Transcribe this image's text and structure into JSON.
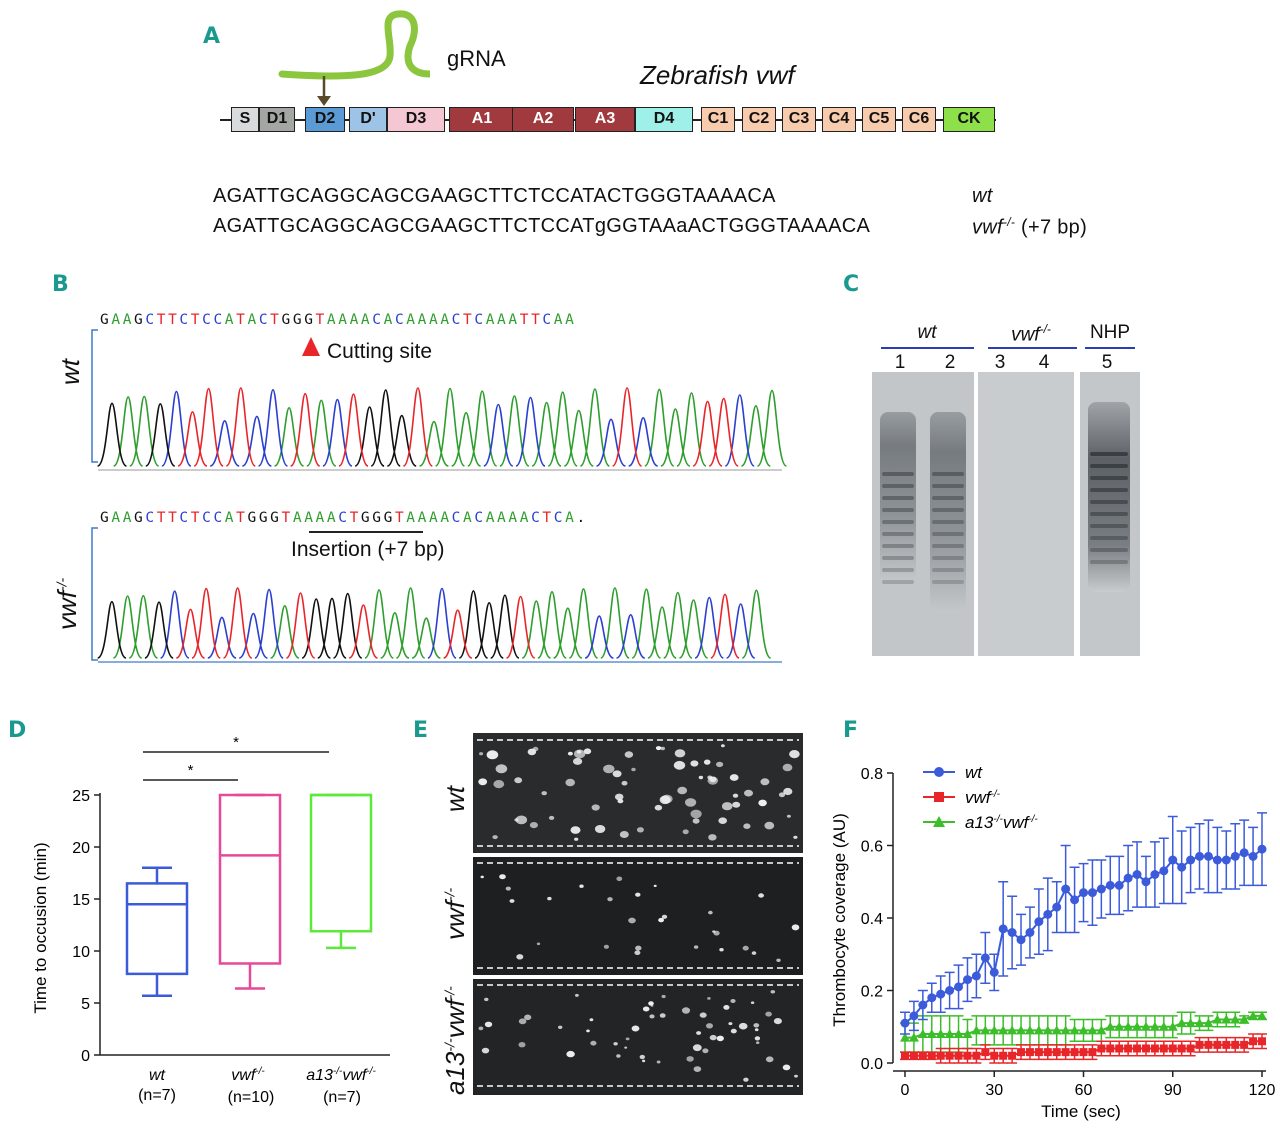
{
  "panel_letters": {
    "a": "A",
    "b": "B",
    "c": "C",
    "d": "D",
    "e": "E",
    "f": "F"
  },
  "panelA": {
    "grna_label": "gRNA",
    "gene_title": "Zebrafish vwf",
    "domains": [
      {
        "label": "S",
        "color": "#d8dadb"
      },
      {
        "label": "D1",
        "color": "#a4a6a4"
      },
      {
        "label": "D2",
        "color": "#5b9bd5"
      },
      {
        "label": "D'",
        "color": "#9dc3e6"
      },
      {
        "label": "D3",
        "color": "#f4c7d3"
      },
      {
        "label": "A1",
        "color": "#a03a3e"
      },
      {
        "label": "A2",
        "color": "#a03a3e"
      },
      {
        "label": "A3",
        "color": "#a03a3e"
      },
      {
        "label": "D4",
        "color": "#9ff0e8"
      },
      {
        "label": "C1",
        "color": "#f8cbad"
      },
      {
        "label": "C2",
        "color": "#f8cbad"
      },
      {
        "label": "C3",
        "color": "#f8cbad"
      },
      {
        "label": "C4",
        "color": "#f8cbad"
      },
      {
        "label": "C5",
        "color": "#f8cbad"
      },
      {
        "label": "C6",
        "color": "#f8cbad"
      },
      {
        "label": "CK",
        "color": "#8ee04a"
      }
    ],
    "seq_wt": "AGATTGCAGGCAGCGAAGCTTCTCCATACTGGGTAAAACA",
    "seq_mut_pre": "AGATTGCAGGCAGCGAAGCTTCTCCAT",
    "seq_mut_ins1": "g",
    "seq_mut_mid": "GGTAA",
    "seq_mut_ins2": "a",
    "seq_mut_post": "ACTGGGTAAAACA",
    "label_wt": "wt",
    "label_mut": "vwf",
    "label_mut_sup": "-/-",
    "label_mut_note": "(+7 bp)"
  },
  "panelB": {
    "wt_label": "wt",
    "mut_label": "vwf",
    "mut_sup": "-/-",
    "wt_seq": "GAAGCTTCTCCATACTGGGTAAAACACAAAACTCAAATTCAA",
    "mut_seq": "GAAGCTTCTCCATGGGTAAAACTGGGTAAAACACAAAACTCA.",
    "cutting_site": "Cutting site",
    "insertion": "Insertion (+7 bp)"
  },
  "panelC": {
    "group_wt": "wt",
    "group_mut": "vwf",
    "group_mut_sup": "-/-",
    "group_nhp": "NHP",
    "lanes": [
      "1",
      "2",
      "3",
      "4",
      "5"
    ]
  },
  "panelD": {
    "chart_data": {
      "type": "box",
      "ylabel": "Time to occusion (min)",
      "ylim": [
        0,
        25
      ],
      "yticks": [
        0,
        5,
        10,
        15,
        20,
        25
      ],
      "groups": [
        {
          "name": "wt",
          "n": "(n=7)",
          "color": "#3b5bdb",
          "min": 5.7,
          "q1": 7.8,
          "median": 14.5,
          "q3": 16.5,
          "max": 18.0
        },
        {
          "name": "vwf-/-",
          "n": "(n=10)",
          "color": "#e6489a",
          "min": 6.4,
          "q1": 8.8,
          "median": 19.2,
          "q3": 25.0,
          "max": 25.0
        },
        {
          "name": "a13-/-vwf-/-",
          "n": "(n=7)",
          "color": "#5ee83a",
          "min": 10.3,
          "q1": 11.9,
          "median": 25.0,
          "q3": 25.0,
          "max": 25.0
        }
      ],
      "significance": [
        {
          "from": "wt",
          "to": "vwf-/-",
          "label": "*"
        },
        {
          "from": "wt",
          "to": "a13-/-vwf-/-",
          "label": "*"
        }
      ]
    },
    "x_names": {
      "wt": "wt",
      "vwf": "vwf",
      "vwf_sup": "-/-",
      "a13": "a13",
      "a13_sup": "-/-",
      "a13_vwf": "vwf",
      "a13_vwf_sup": "-/-"
    }
  },
  "panelE": {
    "row_wt": "wt",
    "row_mut": "vwf",
    "row_mut_sup": "-/-",
    "row_dko_a13": "a13",
    "row_dko_a13_sup": "-/-",
    "row_dko_vwf": "vwf",
    "row_dko_vwf_sup": "-/-"
  },
  "panelF": {
    "chart_data": {
      "type": "line",
      "xlabel": "Time (sec)",
      "ylabel": "Thrombocyte coverage (AU)",
      "xlim": [
        0,
        120
      ],
      "ylim": [
        0,
        0.8
      ],
      "xticks": [
        0,
        30,
        60,
        90,
        120
      ],
      "yticks": [
        0.0,
        0.2,
        0.4,
        0.6,
        0.8
      ],
      "series": [
        {
          "name": "wt",
          "color": "#3b5bdb",
          "marker": "circle",
          "x": [
            0,
            3,
            6,
            9,
            12,
            15,
            18,
            21,
            24,
            27,
            30,
            33,
            36,
            39,
            42,
            45,
            48,
            51,
            54,
            57,
            60,
            63,
            66,
            69,
            72,
            75,
            78,
            81,
            84,
            87,
            90,
            93,
            96,
            99,
            102,
            105,
            108,
            111,
            114,
            117,
            120
          ],
          "y": [
            0.11,
            0.13,
            0.16,
            0.18,
            0.19,
            0.2,
            0.21,
            0.23,
            0.24,
            0.29,
            0.25,
            0.37,
            0.36,
            0.34,
            0.36,
            0.39,
            0.41,
            0.43,
            0.48,
            0.45,
            0.47,
            0.47,
            0.48,
            0.49,
            0.49,
            0.51,
            0.52,
            0.5,
            0.52,
            0.53,
            0.56,
            0.54,
            0.56,
            0.57,
            0.57,
            0.56,
            0.56,
            0.57,
            0.58,
            0.57,
            0.59
          ],
          "err": [
            0.03,
            0.04,
            0.04,
            0.04,
            0.05,
            0.05,
            0.06,
            0.06,
            0.06,
            0.07,
            0.05,
            0.13,
            0.1,
            0.07,
            0.07,
            0.09,
            0.1,
            0.07,
            0.12,
            0.09,
            0.08,
            0.09,
            0.08,
            0.08,
            0.08,
            0.09,
            0.09,
            0.07,
            0.09,
            0.09,
            0.12,
            0.1,
            0.09,
            0.09,
            0.1,
            0.09,
            0.08,
            0.09,
            0.09,
            0.08,
            0.1
          ]
        },
        {
          "name": "vwf-/-",
          "color": "#e8262a",
          "marker": "square",
          "x": [
            0,
            3,
            6,
            9,
            12,
            15,
            18,
            21,
            24,
            27,
            30,
            33,
            36,
            39,
            42,
            45,
            48,
            51,
            54,
            57,
            60,
            63,
            66,
            69,
            72,
            75,
            78,
            81,
            84,
            87,
            90,
            93,
            96,
            99,
            102,
            105,
            108,
            111,
            114,
            117,
            120
          ],
          "y": [
            0.02,
            0.02,
            0.02,
            0.02,
            0.02,
            0.02,
            0.02,
            0.02,
            0.02,
            0.03,
            0.02,
            0.02,
            0.02,
            0.03,
            0.03,
            0.03,
            0.03,
            0.03,
            0.03,
            0.03,
            0.03,
            0.03,
            0.04,
            0.04,
            0.04,
            0.04,
            0.04,
            0.04,
            0.04,
            0.04,
            0.04,
            0.04,
            0.04,
            0.05,
            0.05,
            0.05,
            0.05,
            0.05,
            0.05,
            0.06,
            0.06
          ],
          "err": [
            0.01,
            0.01,
            0.01,
            0.01,
            0.02,
            0.02,
            0.02,
            0.02,
            0.02,
            0.02,
            0.02,
            0.02,
            0.02,
            0.02,
            0.02,
            0.02,
            0.02,
            0.02,
            0.02,
            0.02,
            0.02,
            0.02,
            0.02,
            0.02,
            0.02,
            0.02,
            0.02,
            0.02,
            0.02,
            0.02,
            0.02,
            0.02,
            0.02,
            0.02,
            0.02,
            0.02,
            0.02,
            0.02,
            0.02,
            0.02,
            0.02
          ]
        },
        {
          "name": "a13-/-vwf-/-",
          "color": "#3cbe2a",
          "marker": "triangle",
          "x": [
            0,
            3,
            6,
            9,
            12,
            15,
            18,
            21,
            24,
            27,
            30,
            33,
            36,
            39,
            42,
            45,
            48,
            51,
            54,
            57,
            60,
            63,
            66,
            69,
            72,
            75,
            78,
            81,
            84,
            87,
            90,
            93,
            96,
            99,
            102,
            105,
            108,
            111,
            114,
            117,
            120
          ],
          "y": [
            0.07,
            0.07,
            0.08,
            0.08,
            0.08,
            0.08,
            0.08,
            0.08,
            0.09,
            0.09,
            0.09,
            0.09,
            0.09,
            0.09,
            0.09,
            0.09,
            0.09,
            0.09,
            0.09,
            0.09,
            0.09,
            0.09,
            0.09,
            0.1,
            0.1,
            0.1,
            0.1,
            0.1,
            0.1,
            0.1,
            0.1,
            0.11,
            0.11,
            0.11,
            0.11,
            0.12,
            0.12,
            0.12,
            0.12,
            0.13,
            0.13
          ],
          "err": [
            0.04,
            0.04,
            0.05,
            0.05,
            0.05,
            0.05,
            0.05,
            0.04,
            0.04,
            0.04,
            0.04,
            0.04,
            0.04,
            0.04,
            0.04,
            0.04,
            0.04,
            0.04,
            0.04,
            0.03,
            0.03,
            0.03,
            0.03,
            0.03,
            0.03,
            0.03,
            0.03,
            0.03,
            0.03,
            0.03,
            0.03,
            0.03,
            0.03,
            0.02,
            0.02,
            0.02,
            0.02,
            0.02,
            0.01,
            0.01,
            0.01
          ]
        }
      ]
    },
    "legend": {
      "wt": "wt",
      "vwf": "vwf",
      "vwf_sup": "-/-",
      "a13": "a13",
      "a13_sup": "-/-",
      "a13_vwf": "vwf",
      "a13_vwf_sup": "-/-"
    }
  }
}
